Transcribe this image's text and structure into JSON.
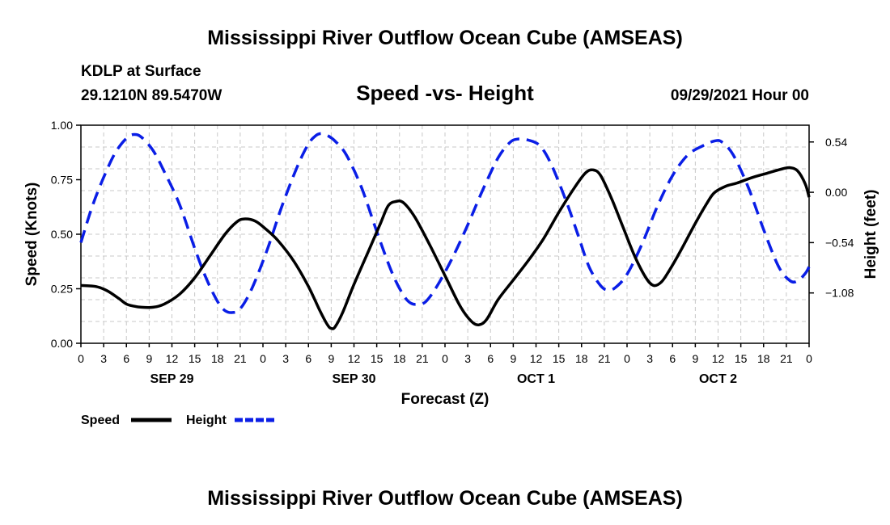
{
  "chart_data": {
    "type": "line",
    "title": "Mississippi River Outflow Ocean Cube (AMSEAS)",
    "footer_title": "Mississippi River Outflow Ocean Cube (AMSEAS)",
    "station": "KDLP at Surface",
    "location": "29.1210N  89.5470W",
    "subtitle": "Speed -vs- Height",
    "datetime": "09/29/2021 Hour 00",
    "xlabel": "Forecast (Z)",
    "ylabel_left": "Speed (Knots)",
    "ylabel_right": "Height (feet)",
    "grid": true,
    "legend_position": "bottom-left",
    "x_range_hours": [
      0,
      96
    ],
    "x_tick_step_hours": 3,
    "x_tick_labels": [
      "0",
      "3",
      "6",
      "9",
      "12",
      "15",
      "18",
      "21",
      "0",
      "3",
      "6",
      "9",
      "12",
      "15",
      "18",
      "21",
      "0",
      "3",
      "6",
      "9",
      "12",
      "15",
      "18",
      "21",
      "0",
      "3",
      "6",
      "9",
      "12",
      "15",
      "18",
      "21",
      "0"
    ],
    "day_labels": [
      {
        "label": "SEP 29",
        "hour": 12
      },
      {
        "label": "SEP 30",
        "hour": 36
      },
      {
        "label": "OCT 1",
        "hour": 60
      },
      {
        "label": "OCT 2",
        "hour": 84
      }
    ],
    "left_axis": {
      "min": 0,
      "max": 1.0,
      "ticks": [
        0.0,
        0.25,
        0.5,
        0.75,
        1.0
      ],
      "tick_labels": [
        "0.00",
        "0.25",
        "0.50",
        "0.75",
        "1.00"
      ]
    },
    "right_axis": {
      "min": -1.62,
      "max": 0.72,
      "ticks": [
        0.54,
        0.0,
        -0.54,
        -1.08
      ],
      "tick_labels": [
        "0.54",
        "0.00",
        "−0.54",
        "−1.08"
      ]
    },
    "series": [
      {
        "name": "Speed",
        "axis": "left",
        "color": "#000000",
        "style": "solid",
        "points": [
          [
            0,
            0.265
          ],
          [
            2,
            0.26
          ],
          [
            3.5,
            0.24
          ],
          [
            5,
            0.205
          ],
          [
            6,
            0.18
          ],
          [
            7,
            0.17
          ],
          [
            8,
            0.165
          ],
          [
            9.5,
            0.165
          ],
          [
            11,
            0.18
          ],
          [
            13,
            0.225
          ],
          [
            15,
            0.3
          ],
          [
            17,
            0.4
          ],
          [
            19,
            0.5
          ],
          [
            20.5,
            0.555
          ],
          [
            21.5,
            0.57
          ],
          [
            23,
            0.56
          ],
          [
            24.5,
            0.52
          ],
          [
            26,
            0.47
          ],
          [
            28,
            0.38
          ],
          [
            30,
            0.26
          ],
          [
            31.5,
            0.15
          ],
          [
            32.5,
            0.085
          ],
          [
            33,
            0.068
          ],
          [
            33.5,
            0.075
          ],
          [
            34.5,
            0.14
          ],
          [
            36,
            0.27
          ],
          [
            38,
            0.43
          ],
          [
            39.5,
            0.55
          ],
          [
            40.5,
            0.63
          ],
          [
            41.5,
            0.65
          ],
          [
            42.5,
            0.645
          ],
          [
            44,
            0.58
          ],
          [
            46,
            0.45
          ],
          [
            48,
            0.31
          ],
          [
            50,
            0.17
          ],
          [
            51.5,
            0.1
          ],
          [
            52.5,
            0.085
          ],
          [
            53.5,
            0.11
          ],
          [
            55,
            0.2
          ],
          [
            57,
            0.29
          ],
          [
            59,
            0.38
          ],
          [
            61,
            0.48
          ],
          [
            63,
            0.6
          ],
          [
            65,
            0.71
          ],
          [
            66.5,
            0.78
          ],
          [
            67.5,
            0.795
          ],
          [
            68.5,
            0.77
          ],
          [
            70,
            0.66
          ],
          [
            71.5,
            0.53
          ],
          [
            73,
            0.4
          ],
          [
            74.5,
            0.3
          ],
          [
            75.5,
            0.265
          ],
          [
            76.5,
            0.28
          ],
          [
            77.5,
            0.33
          ],
          [
            79,
            0.42
          ],
          [
            81,
            0.55
          ],
          [
            82.5,
            0.64
          ],
          [
            83.5,
            0.69
          ],
          [
            85,
            0.72
          ],
          [
            86.5,
            0.735
          ],
          [
            88.5,
            0.76
          ],
          [
            90.5,
            0.78
          ],
          [
            92.5,
            0.8
          ],
          [
            93.5,
            0.805
          ],
          [
            94.5,
            0.79
          ],
          [
            95.5,
            0.73
          ],
          [
            96,
            0.67
          ]
        ]
      },
      {
        "name": "Height",
        "axis": "right",
        "color": "#0a1ee6",
        "style": "dashed",
        "points": [
          [
            0,
            -0.54
          ],
          [
            1.5,
            -0.15
          ],
          [
            3,
            0.16
          ],
          [
            4.5,
            0.42
          ],
          [
            6,
            0.58
          ],
          [
            7,
            0.62
          ],
          [
            8,
            0.59
          ],
          [
            9.5,
            0.45
          ],
          [
            11,
            0.22
          ],
          [
            13,
            -0.13
          ],
          [
            15,
            -0.6
          ],
          [
            16.5,
            -0.92
          ],
          [
            18,
            -1.17
          ],
          [
            19,
            -1.27
          ],
          [
            20,
            -1.29
          ],
          [
            21,
            -1.25
          ],
          [
            22.5,
            -1.04
          ],
          [
            24.5,
            -0.63
          ],
          [
            26.5,
            -0.15
          ],
          [
            28.5,
            0.27
          ],
          [
            30,
            0.52
          ],
          [
            31,
            0.61
          ],
          [
            31.7,
            0.63
          ],
          [
            32.5,
            0.61
          ],
          [
            33.5,
            0.55
          ],
          [
            35,
            0.4
          ],
          [
            37,
            0.05
          ],
          [
            39,
            -0.42
          ],
          [
            41,
            -0.86
          ],
          [
            42.5,
            -1.1
          ],
          [
            43.5,
            -1.19
          ],
          [
            44.5,
            -1.2
          ],
          [
            45.5,
            -1.17
          ],
          [
            47,
            -1.0
          ],
          [
            49,
            -0.7
          ],
          [
            51,
            -0.35
          ],
          [
            53,
            0.03
          ],
          [
            55,
            0.37
          ],
          [
            56.5,
            0.53
          ],
          [
            57.5,
            0.57
          ],
          [
            59,
            0.56
          ],
          [
            60.5,
            0.5
          ],
          [
            62,
            0.3
          ],
          [
            64,
            -0.1
          ],
          [
            65.5,
            -0.45
          ],
          [
            67,
            -0.8
          ],
          [
            68.5,
            -1.0
          ],
          [
            69.5,
            -1.05
          ],
          [
            70.5,
            -1.02
          ],
          [
            72,
            -0.88
          ],
          [
            74,
            -0.55
          ],
          [
            76,
            -0.15
          ],
          [
            78,
            0.18
          ],
          [
            80,
            0.4
          ],
          [
            82,
            0.5
          ],
          [
            83.5,
            0.55
          ],
          [
            84.5,
            0.54
          ],
          [
            86,
            0.4
          ],
          [
            88,
            0.05
          ],
          [
            90,
            -0.4
          ],
          [
            92,
            -0.8
          ],
          [
            93.5,
            -0.95
          ],
          [
            94.5,
            -0.95
          ],
          [
            95.5,
            -0.87
          ],
          [
            96,
            -0.8
          ]
        ]
      }
    ]
  }
}
